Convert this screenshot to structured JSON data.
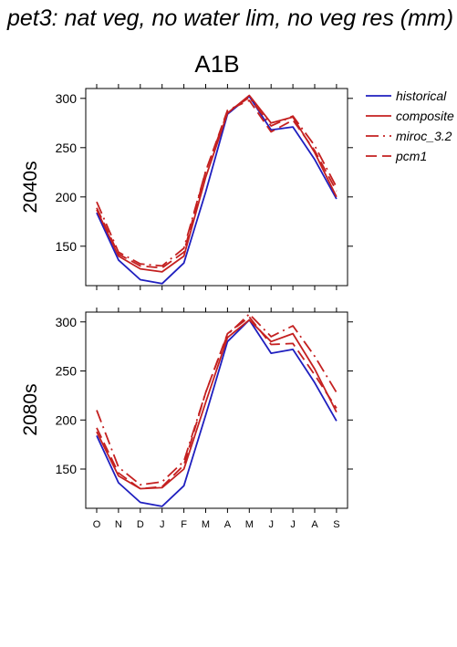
{
  "figure": {
    "title": "pet3: nat veg, no water lim, no veg res (mm)",
    "scenario": "A1B"
  },
  "legend": [
    {
      "name": "historical",
      "color": "#1f1fbf",
      "dash": "solid"
    },
    {
      "name": "composite",
      "color": "#c42020",
      "dash": "solid"
    },
    {
      "name": "miroc_3.2",
      "color": "#c42020",
      "dash": "dashdot"
    },
    {
      "name": "pcm1",
      "color": "#c42020",
      "dash": "dashed"
    }
  ],
  "chart_data": [
    {
      "type": "line",
      "row_label": "2040s",
      "categories": [
        "O",
        "N",
        "D",
        "J",
        "F",
        "M",
        "A",
        "M",
        "J",
        "J",
        "A",
        "S"
      ],
      "ylim": [
        110,
        310
      ],
      "yticks": [
        150,
        200,
        250,
        300
      ],
      "series": [
        {
          "name": "historical",
          "values": [
            184,
            136,
            116,
            112,
            133,
            205,
            284,
            302,
            268,
            271,
            238,
            198
          ]
        },
        {
          "name": "composite",
          "values": [
            187,
            140,
            127,
            124,
            140,
            220,
            285,
            303,
            275,
            281,
            245,
            200
          ]
        },
        {
          "name": "miroc_3.2",
          "values": [
            195,
            144,
            132,
            130,
            148,
            226,
            286,
            301,
            272,
            282,
            252,
            210
          ]
        },
        {
          "name": "pcm1",
          "values": [
            189,
            142,
            130,
            128,
            144,
            226,
            288,
            298,
            266,
            278,
            247,
            206
          ]
        }
      ]
    },
    {
      "type": "line",
      "row_label": "2080s",
      "categories": [
        "O",
        "N",
        "D",
        "J",
        "F",
        "M",
        "A",
        "M",
        "J",
        "J",
        "A",
        "S"
      ],
      "ylim": [
        110,
        310
      ],
      "yticks": [
        150,
        200,
        250,
        300
      ],
      "series": [
        {
          "name": "historical",
          "values": [
            184,
            136,
            116,
            112,
            133,
            205,
            280,
            302,
            268,
            272,
            238,
            199
          ]
        },
        {
          "name": "composite",
          "values": [
            188,
            143,
            130,
            131,
            150,
            218,
            284,
            302,
            280,
            288,
            252,
            208
          ]
        },
        {
          "name": "miroc_3.2",
          "values": [
            210,
            152,
            134,
            137,
            158,
            228,
            287,
            308,
            285,
            296,
            265,
            228
          ]
        },
        {
          "name": "pcm1",
          "values": [
            192,
            146,
            130,
            132,
            154,
            228,
            288,
            305,
            277,
            278,
            246,
            212
          ]
        }
      ]
    }
  ]
}
